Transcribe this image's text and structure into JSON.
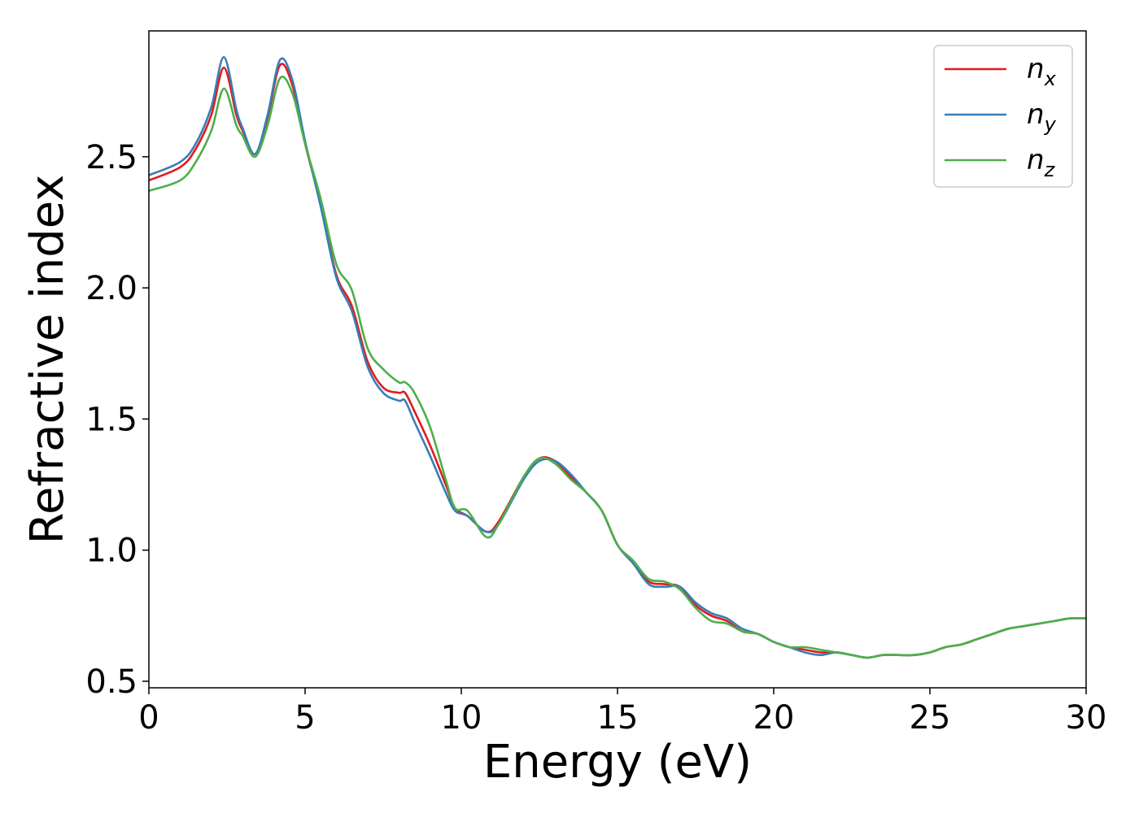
{
  "chart_data": {
    "type": "line",
    "title": "",
    "xlabel": "Energy (eV)",
    "ylabel": "Refractive index",
    "xlim": [
      0,
      30
    ],
    "ylim": [
      0.475,
      2.98
    ],
    "xticks": [
      0,
      5,
      10,
      15,
      20,
      25,
      30
    ],
    "xtick_labels": [
      "0",
      "5",
      "10",
      "15",
      "20",
      "25",
      "30"
    ],
    "yticks": [
      0.5,
      1.0,
      1.5,
      2.0,
      2.5
    ],
    "ytick_labels": [
      "0.5",
      "1.0",
      "1.5",
      "2.0",
      "2.5"
    ],
    "grid": false,
    "legend_position": "top-right",
    "series": [
      {
        "name": "n",
        "subscript": "x",
        "color": "#e41a1c",
        "x": [
          0,
          1,
          1.5,
          2.0,
          2.4,
          2.8,
          3.0,
          3.4,
          3.8,
          4.2,
          4.6,
          5.0,
          5.5,
          6.0,
          6.5,
          7.0,
          7.5,
          8.0,
          8.2,
          8.5,
          9.0,
          9.5,
          9.8,
          10.2,
          10.8,
          11.2,
          12.0,
          12.5,
          13.0,
          13.5,
          14.0,
          14.5,
          15.0,
          15.5,
          16.0,
          16.5,
          17.0,
          17.5,
          18.0,
          18.5,
          19.0,
          19.5,
          20.0,
          20.5,
          21.0,
          21.5,
          22.0,
          22.5,
          23.0,
          23.5,
          24.0,
          24.5,
          25.0,
          25.5,
          26.0,
          26.5,
          27.0,
          27.5,
          28.0,
          28.5,
          29.0,
          29.5,
          30.0
        ],
        "values": [
          2.41,
          2.46,
          2.53,
          2.66,
          2.84,
          2.66,
          2.6,
          2.51,
          2.65,
          2.85,
          2.77,
          2.55,
          2.32,
          2.05,
          1.93,
          1.72,
          1.62,
          1.6,
          1.6,
          1.53,
          1.4,
          1.25,
          1.16,
          1.13,
          1.07,
          1.11,
          1.28,
          1.35,
          1.34,
          1.28,
          1.22,
          1.15,
          1.02,
          0.95,
          0.88,
          0.87,
          0.86,
          0.79,
          0.75,
          0.73,
          0.69,
          0.68,
          0.65,
          0.63,
          0.62,
          0.61,
          0.61,
          0.6,
          0.59,
          0.6,
          0.6,
          0.6,
          0.61,
          0.63,
          0.64,
          0.66,
          0.68,
          0.7,
          0.71,
          0.72,
          0.73,
          0.74,
          0.74
        ]
      },
      {
        "name": "n",
        "subscript": "y",
        "color": "#377eb8",
        "x": [
          0,
          1,
          1.5,
          2.0,
          2.4,
          2.8,
          3.0,
          3.4,
          3.8,
          4.2,
          4.6,
          5.0,
          5.5,
          6.0,
          6.5,
          7.0,
          7.5,
          8.0,
          8.2,
          8.5,
          9.0,
          9.5,
          9.8,
          10.2,
          10.8,
          11.2,
          12.0,
          12.5,
          13.0,
          13.5,
          14.0,
          14.5,
          15.0,
          15.5,
          16.0,
          16.5,
          17.0,
          17.5,
          18.0,
          18.5,
          19.0,
          19.5,
          20.0,
          20.5,
          21.0,
          21.5,
          22.0,
          22.5,
          23.0,
          23.5,
          24.0,
          24.5,
          25.0,
          25.5,
          26.0,
          26.5,
          27.0,
          27.5,
          28.0,
          28.5,
          29.0,
          29.5,
          30.0
        ],
        "values": [
          2.43,
          2.48,
          2.55,
          2.69,
          2.88,
          2.68,
          2.61,
          2.51,
          2.66,
          2.87,
          2.79,
          2.56,
          2.31,
          2.04,
          1.91,
          1.7,
          1.6,
          1.57,
          1.57,
          1.49,
          1.36,
          1.22,
          1.15,
          1.13,
          1.07,
          1.1,
          1.27,
          1.34,
          1.34,
          1.29,
          1.22,
          1.15,
          1.02,
          0.95,
          0.87,
          0.86,
          0.86,
          0.8,
          0.76,
          0.74,
          0.7,
          0.68,
          0.65,
          0.63,
          0.61,
          0.6,
          0.61,
          0.6,
          0.59,
          0.6,
          0.6,
          0.6,
          0.61,
          0.63,
          0.64,
          0.66,
          0.68,
          0.7,
          0.71,
          0.72,
          0.73,
          0.74,
          0.74
        ]
      },
      {
        "name": "n",
        "subscript": "z",
        "color": "#4daf4a",
        "x": [
          0,
          1,
          1.5,
          2.0,
          2.4,
          2.8,
          3.0,
          3.4,
          3.8,
          4.2,
          4.6,
          5.0,
          5.5,
          6.0,
          6.5,
          7.0,
          7.5,
          8.0,
          8.2,
          8.5,
          9.0,
          9.5,
          9.8,
          10.2,
          10.8,
          11.2,
          12.0,
          12.5,
          13.0,
          13.5,
          14.0,
          14.5,
          15.0,
          15.5,
          16.0,
          16.5,
          17.0,
          17.5,
          18.0,
          18.5,
          19.0,
          19.5,
          20.0,
          20.5,
          21.0,
          21.5,
          22.0,
          22.5,
          23.0,
          23.5,
          24.0,
          24.5,
          25.0,
          25.5,
          26.0,
          26.5,
          27.0,
          27.5,
          28.0,
          28.5,
          29.0,
          29.5,
          30.0
        ],
        "values": [
          2.37,
          2.41,
          2.48,
          2.6,
          2.76,
          2.62,
          2.58,
          2.5,
          2.62,
          2.8,
          2.74,
          2.55,
          2.34,
          2.09,
          1.99,
          1.77,
          1.69,
          1.64,
          1.64,
          1.6,
          1.47,
          1.27,
          1.16,
          1.15,
          1.05,
          1.1,
          1.28,
          1.35,
          1.33,
          1.27,
          1.22,
          1.15,
          1.02,
          0.96,
          0.89,
          0.88,
          0.85,
          0.78,
          0.73,
          0.72,
          0.69,
          0.68,
          0.65,
          0.63,
          0.63,
          0.62,
          0.61,
          0.6,
          0.59,
          0.6,
          0.6,
          0.6,
          0.61,
          0.63,
          0.64,
          0.66,
          0.68,
          0.7,
          0.71,
          0.72,
          0.73,
          0.74,
          0.74
        ]
      }
    ]
  }
}
